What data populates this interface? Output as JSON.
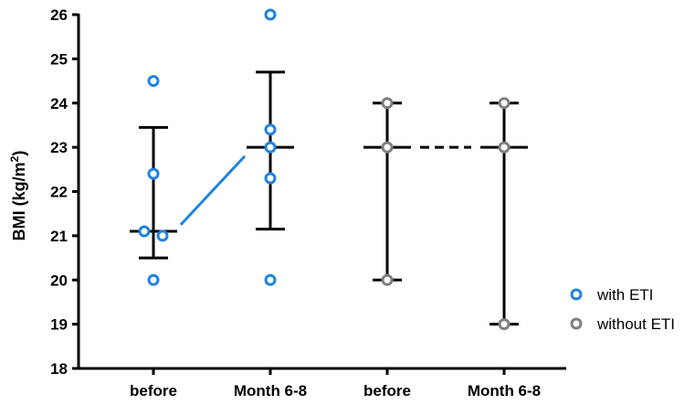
{
  "chart_data": {
    "type": "scatter",
    "title": "",
    "ylabel_main": "BMI (kg/m",
    "ylabel_sup": "2",
    "ylabel_close": ")",
    "ylim": [
      18,
      26
    ],
    "yticks": [
      18,
      19,
      20,
      21,
      22,
      23,
      24,
      25,
      26
    ],
    "ytick_labels": [
      "18",
      "19",
      "20",
      "21",
      "22",
      "23",
      "24",
      "25",
      "26"
    ],
    "categories": [
      "before",
      "Month 6-8",
      "before",
      "Month 6-8"
    ],
    "groups": [
      {
        "series": 0,
        "category": 0,
        "points": [
          21.1,
          22.4,
          24.5,
          21.0,
          20.0
        ],
        "jitter": [
          -0.5,
          0,
          0,
          0.5,
          0
        ],
        "median": 21.1,
        "err_low": 20.5,
        "err_high": 23.45
      },
      {
        "series": 0,
        "category": 1,
        "points": [
          26.0,
          23.4,
          23.0,
          22.3,
          20.0
        ],
        "jitter": [
          0,
          0,
          0,
          0,
          0
        ],
        "median": 23.0,
        "err_low": 21.15,
        "err_high": 24.7
      },
      {
        "series": 1,
        "category": 2,
        "points": [
          24.0,
          23.0,
          20.0
        ],
        "jitter": [
          0,
          0,
          0
        ],
        "median": 23.0,
        "err_low": 20.0,
        "err_high": 24.0
      },
      {
        "series": 1,
        "category": 3,
        "points": [
          24.0,
          23.0,
          19.0
        ],
        "jitter": [
          0,
          0,
          0
        ],
        "median": 23.0,
        "err_low": 19.0,
        "err_high": 24.0
      }
    ],
    "series": [
      {
        "name": "with ETI",
        "color": "#1f82e6"
      },
      {
        "name": "without ETI",
        "color": "#7f7f7f"
      }
    ],
    "connectors": [
      {
        "series": 0,
        "from": {
          "category": 0,
          "value": 21.25
        },
        "to": {
          "category": 1,
          "value": 22.8
        },
        "style": "solid"
      },
      {
        "series": 1,
        "from": {
          "category": 2,
          "value": 23.0
        },
        "to": {
          "category": 3,
          "value": 23.0
        },
        "style": "dashed"
      }
    ],
    "legend_position": "bottom-right",
    "grid": false
  }
}
